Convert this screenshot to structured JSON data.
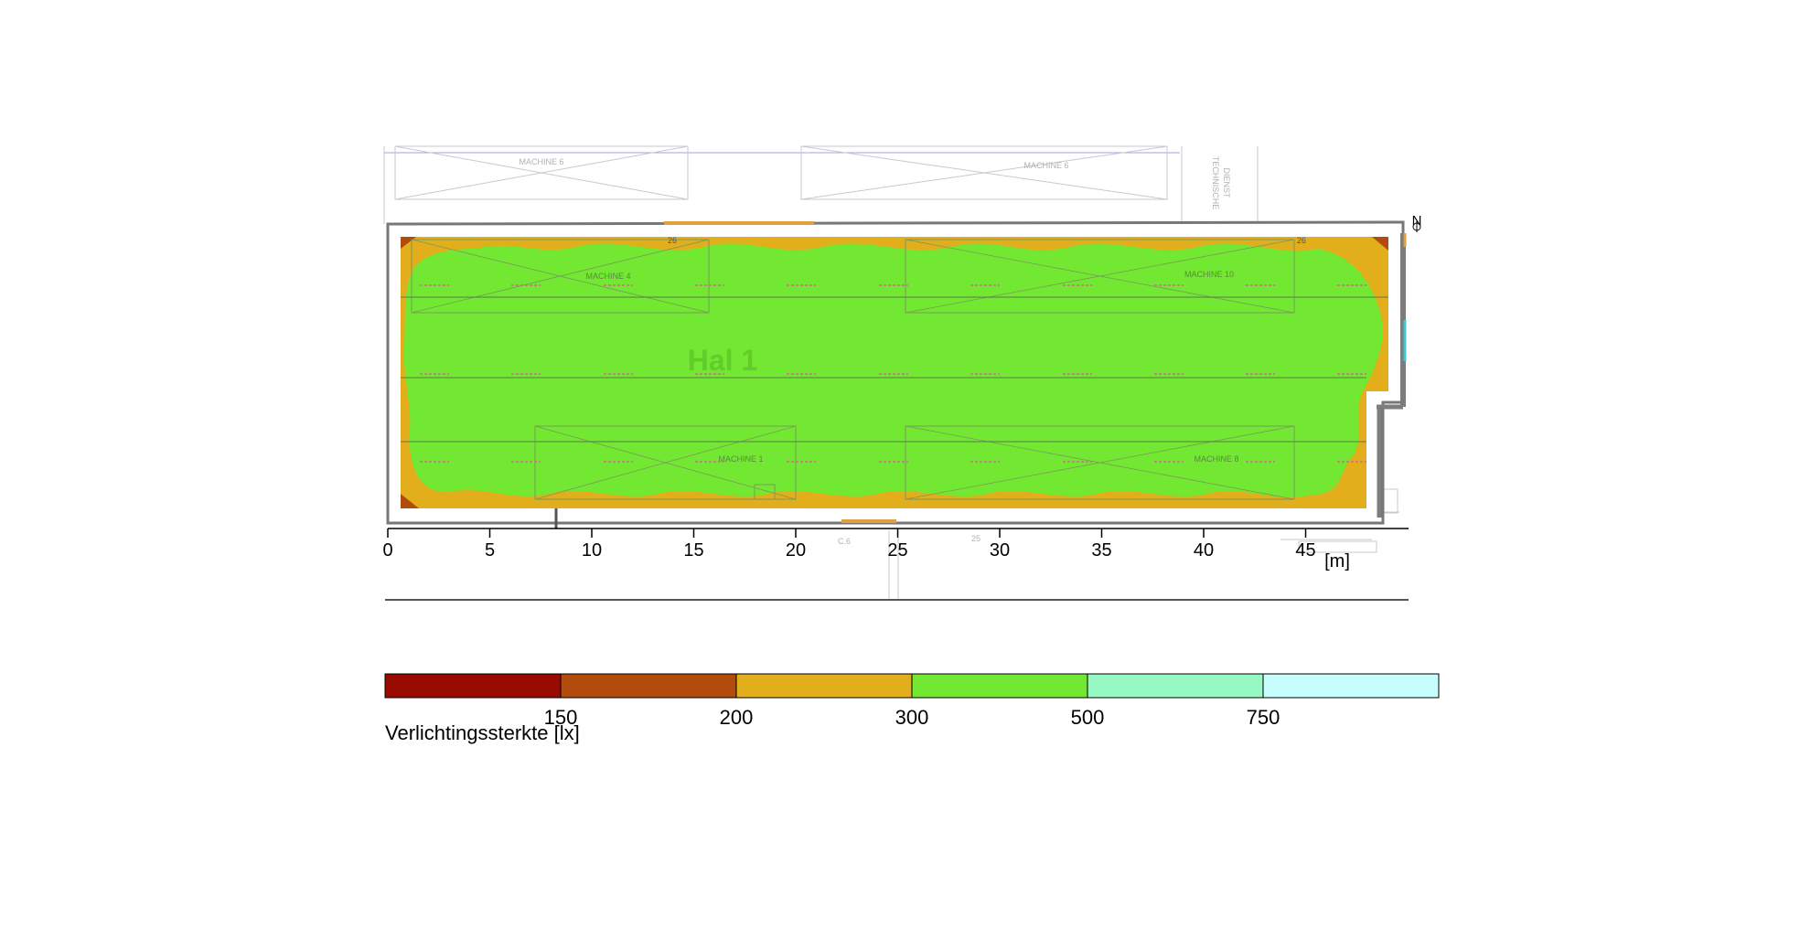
{
  "room_label": "Hal 1",
  "machines": [
    "MACHINE 6",
    "MACHINE 6",
    "MACHINE 4",
    "MACHINE 10",
    "MACHINE 1",
    "MACHINE 8"
  ],
  "technical_room": [
    "TECHNISCHE",
    "DIENST"
  ],
  "north_label": "N",
  "room_marks": [
    "26",
    "26"
  ],
  "small_marks": [
    "C.6",
    "25"
  ],
  "x_axis": {
    "ticks": [
      "0",
      "5",
      "10",
      "15",
      "20",
      "25",
      "30",
      "35",
      "40",
      "45"
    ],
    "unit": "[m]"
  },
  "legend": {
    "title": "Verlichtingssterkte [lx]",
    "thresholds": [
      "150",
      "200",
      "300",
      "500",
      "750"
    ],
    "colors": [
      "#990a00",
      "#b14c0c",
      "#e2ae1c",
      "#72e832",
      "#96f9c4",
      "#c6fdfd"
    ]
  },
  "zone_colors": {
    "low": "#b14c0c",
    "medium": "#e2ae1c",
    "high": "#72e832",
    "highest": "#96f9c4"
  }
}
